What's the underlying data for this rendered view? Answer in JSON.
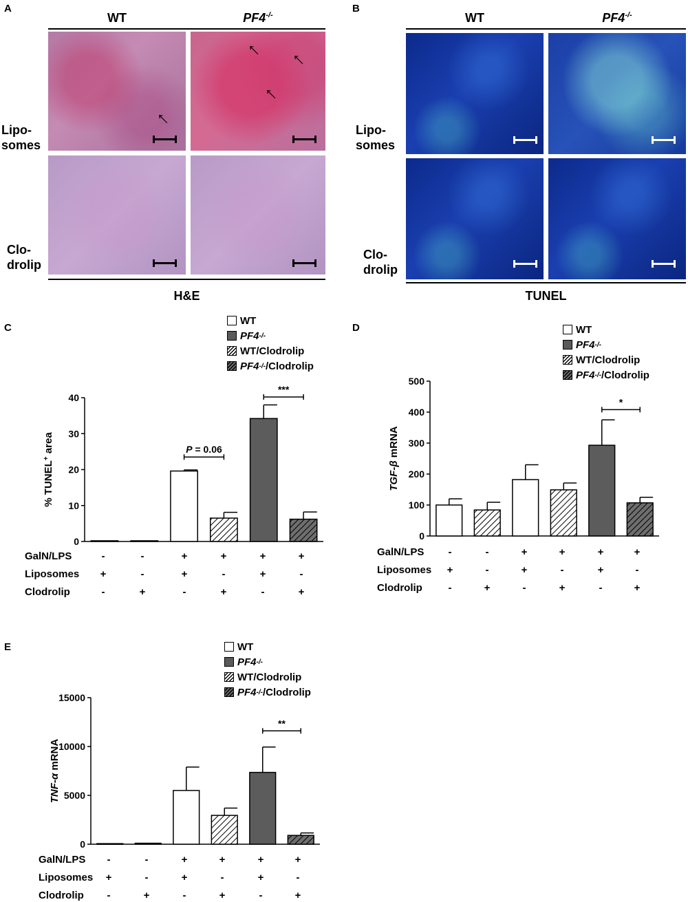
{
  "panel_a": {
    "letter": "A",
    "col_wt": "WT",
    "col_pf4": "PF4",
    "col_pf4_sup": "-/-",
    "row_lipo": [
      "Lipo-",
      "somes"
    ],
    "row_clod": [
      "Clo-",
      "drolip"
    ],
    "caption": "H&E"
  },
  "panel_b": {
    "letter": "B",
    "col_wt": "WT",
    "col_pf4": "PF4",
    "col_pf4_sup": "-/-",
    "row_lipo": [
      "Lipo-",
      "somes"
    ],
    "row_clod": [
      "Clo-",
      "drolip"
    ],
    "caption": "TUNEL"
  },
  "legend": {
    "wt": "WT",
    "pf4": "PF4",
    "pf4_sup": "-/-",
    "wt_clod": "WT/Clodrolip",
    "pf4_clod_suffix": "/Clodrolip"
  },
  "treatments": {
    "labels": [
      "GalN/LPS",
      "Liposomes",
      "Clodrolip"
    ],
    "galn_lps": [
      "-",
      "-",
      "+",
      "+",
      "+",
      "+"
    ],
    "liposomes": [
      "+",
      "-",
      "+",
      "-",
      "+",
      "-"
    ],
    "clodrolip": [
      "-",
      "+",
      "-",
      "+",
      "-",
      "+"
    ]
  },
  "chart_data": [
    {
      "panel": "C",
      "type": "bar",
      "ylabel": "% TUNEL",
      "ylabel_sup": "+",
      "ylabel_suffix": " area",
      "ylim": [
        0,
        40
      ],
      "yticks": [
        0,
        10,
        20,
        30,
        40
      ],
      "categories": [
        "1",
        "2",
        "3",
        "4",
        "5",
        "6"
      ],
      "values": [
        0.2,
        0.2,
        19.6,
        6.5,
        34.2,
        6.2
      ],
      "errors": [
        0,
        0,
        0.3,
        1.6,
        3.8,
        2.0
      ],
      "fills": [
        "white",
        "white",
        "white",
        "hatch",
        "grey",
        "hatchdark"
      ],
      "annotations": [
        {
          "from": 2,
          "to": 3,
          "y": 23.5,
          "label_italic": "P",
          "label": " = 0.06"
        },
        {
          "from": 4,
          "to": 5,
          "y": 40.2,
          "label": "***"
        }
      ]
    },
    {
      "panel": "D",
      "type": "bar",
      "ylabel_italic": "TGF-β",
      "ylabel": " mRNA",
      "ylim": [
        0,
        500
      ],
      "yticks": [
        0,
        100,
        200,
        300,
        400,
        500
      ],
      "categories": [
        "1",
        "2",
        "3",
        "4",
        "5",
        "6"
      ],
      "values": [
        100,
        84,
        182,
        149,
        293,
        107
      ],
      "errors": [
        20,
        25,
        48,
        22,
        82,
        18
      ],
      "fills": [
        "white",
        "hatch",
        "white",
        "hatch",
        "grey",
        "hatchdark"
      ],
      "annotations": [
        {
          "from": 4,
          "to": 5,
          "y": 408,
          "label": "*"
        }
      ]
    },
    {
      "panel": "E",
      "type": "bar",
      "ylabel_italic": "TNF-α",
      "ylabel": " mRNA",
      "ylim": [
        0,
        15000
      ],
      "yticks": [
        0,
        5000,
        10000,
        15000
      ],
      "categories": [
        "1",
        "2",
        "3",
        "4",
        "5",
        "6"
      ],
      "values": [
        60,
        100,
        5500,
        2950,
        7350,
        900
      ],
      "errors": [
        0,
        0,
        2400,
        750,
        2600,
        250
      ],
      "fills": [
        "white",
        "white",
        "white",
        "hatch",
        "grey",
        "hatchdark"
      ],
      "annotations": [
        {
          "from": 4,
          "to": 5,
          "y": 11600,
          "label": "**"
        }
      ]
    }
  ]
}
